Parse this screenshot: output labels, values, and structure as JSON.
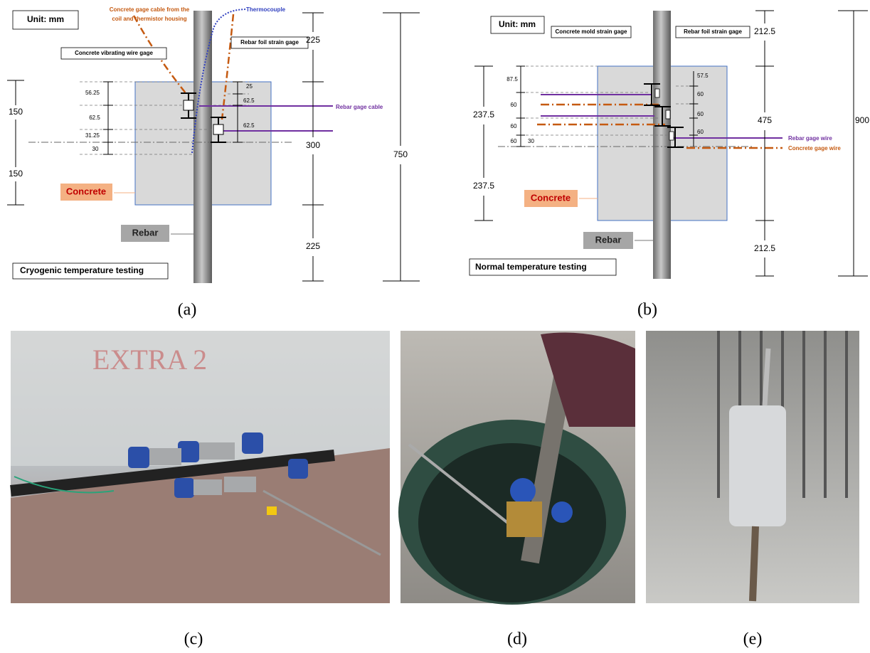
{
  "panel_a": {
    "unit": "Unit: mm",
    "cable_label": [
      "Concrete gage cable from the",
      "coil and thermistor housing"
    ],
    "thermocouple": "Thermocouple",
    "vw_gage": "Concrete vibrating wire gage",
    "foil_gage": "Rebar foil strain gage",
    "rebar_cable": "Rebar gage cable",
    "concrete": "Concrete",
    "rebar": "Rebar",
    "test": "Cryogenic temperature testing",
    "left_dims": [
      "150",
      "150"
    ],
    "inner_dims": [
      "56.25",
      "62.5",
      "31.25",
      "30"
    ],
    "right_inner_dims": [
      "25",
      "62.5",
      "62.5"
    ],
    "right_dims": [
      "225",
      "300",
      "225"
    ],
    "total": "750"
  },
  "panel_b": {
    "unit": "Unit: mm",
    "mold_gage": "Concrete mold strain gage",
    "foil_gage": "Rebar foil strain gage",
    "rebar_wire": "Rebar gage wire",
    "concrete_wire": "Concrete gage wire",
    "concrete": "Concrete",
    "rebar": "Rebar",
    "test": "Normal temperature testing",
    "left_dims": [
      "237.5",
      "237.5"
    ],
    "inner_dims": [
      "87.5",
      "60",
      "60",
      "60",
      "30"
    ],
    "right_inner_dims": [
      "57.5",
      "60",
      "60",
      "60"
    ],
    "right_dims": [
      "212.5",
      "475",
      "212.5"
    ],
    "total": "900"
  },
  "photo_c_text": "EXTRA 2",
  "captions": [
    "(a)",
    "(b)",
    "(c)",
    "(d)",
    "(e)"
  ]
}
